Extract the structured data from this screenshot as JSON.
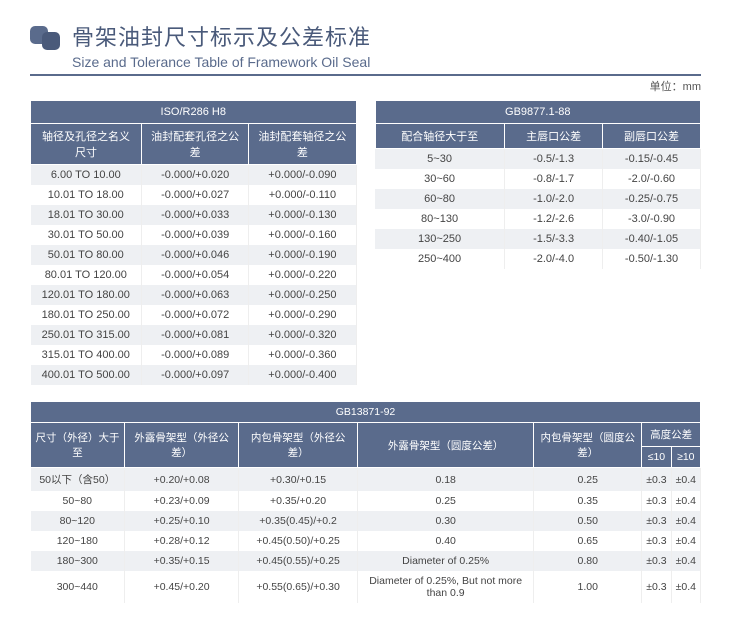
{
  "header": {
    "title_cn": "骨架油封尺寸标示及公差标准",
    "title_en": "Size and Tolerance Table of Framework Oil Seal",
    "unit": "单位：mm"
  },
  "table1": {
    "title": "ISO/R286 H8",
    "cols": [
      "轴径及孔径之名义尺寸",
      "油封配套孔径之公差",
      "油封配套轴径之公差"
    ],
    "rows": [
      [
        "6.00 TO 10.00",
        "-0.000/+0.020",
        "+0.000/-0.090"
      ],
      [
        "10.01 TO 18.00",
        "-0.000/+0.027",
        "+0.000/-0.110"
      ],
      [
        "18.01 TO 30.00",
        "-0.000/+0.033",
        "+0.000/-0.130"
      ],
      [
        "30.01 TO 50.00",
        "-0.000/+0.039",
        "+0.000/-0.160"
      ],
      [
        "50.01 TO 80.00",
        "-0.000/+0.046",
        "+0.000/-0.190"
      ],
      [
        "80.01 TO 120.00",
        "-0.000/+0.054",
        "+0.000/-0.220"
      ],
      [
        "120.01 TO 180.00",
        "-0.000/+0.063",
        "+0.000/-0.250"
      ],
      [
        "180.01 TO 250.00",
        "-0.000/+0.072",
        "+0.000/-0.290"
      ],
      [
        "250.01 TO 315.00",
        "-0.000/+0.081",
        "+0.000/-0.320"
      ],
      [
        "315.01 TO 400.00",
        "-0.000/+0.089",
        "+0.000/-0.360"
      ],
      [
        "400.01 TO 500.00",
        "-0.000/+0.097",
        "+0.000/-0.400"
      ]
    ]
  },
  "table2": {
    "title": "GB9877.1-88",
    "cols": [
      "配合轴径大于至",
      "主唇口公差",
      "副唇口公差"
    ],
    "rows": [
      [
        "5~30",
        "-0.5/-1.3",
        "-0.15/-0.45"
      ],
      [
        "30~60",
        "-0.8/-1.7",
        "-2.0/-0.60"
      ],
      [
        "60~80",
        "-1.0/-2.0",
        "-0.25/-0.75"
      ],
      [
        "80~130",
        "-1.2/-2.6",
        "-3.0/-0.90"
      ],
      [
        "130~250",
        "-1.5/-3.3",
        "-0.40/-1.05"
      ],
      [
        "250~400",
        "-2.0/-4.0",
        "-0.50/-1.30"
      ]
    ]
  },
  "table3": {
    "title": "GB13871-92",
    "height_header": "高度公差",
    "cols": [
      "尺寸（外径）大于至",
      "外露骨架型（外径公差）",
      "内包骨架型（外径公差）",
      "外露骨架型（圆度公差）",
      "内包骨架型（圆度公差）",
      "≤10",
      "≥10"
    ],
    "rows": [
      [
        "50以下（含50）",
        "+0.20/+0.08",
        "+0.30/+0.15",
        "0.18",
        "0.25",
        "±0.3",
        "±0.4"
      ],
      [
        "50~80",
        "+0.23/+0.09",
        "+0.35/+0.20",
        "0.25",
        "0.35",
        "±0.3",
        "±0.4"
      ],
      [
        "80~120",
        "+0.25/+0.10",
        "+0.35(0.45)/+0.2",
        "0.30",
        "0.50",
        "±0.3",
        "±0.4"
      ],
      [
        "120~180",
        "+0.28/+0.12",
        "+0.45(0.50)/+0.25",
        "0.40",
        "0.65",
        "±0.3",
        "±0.4"
      ],
      [
        "180~300",
        "+0.35/+0.15",
        "+0.45(0.55)/+0.25",
        "Diameter of 0.25%",
        "0.80",
        "±0.3",
        "±0.4"
      ],
      [
        "300~440",
        "+0.45/+0.20",
        "+0.55(0.65)/+0.30",
        "Diameter of 0.25%, But not more than 0.9",
        "1.00",
        "±0.3",
        "±0.4"
      ]
    ]
  }
}
